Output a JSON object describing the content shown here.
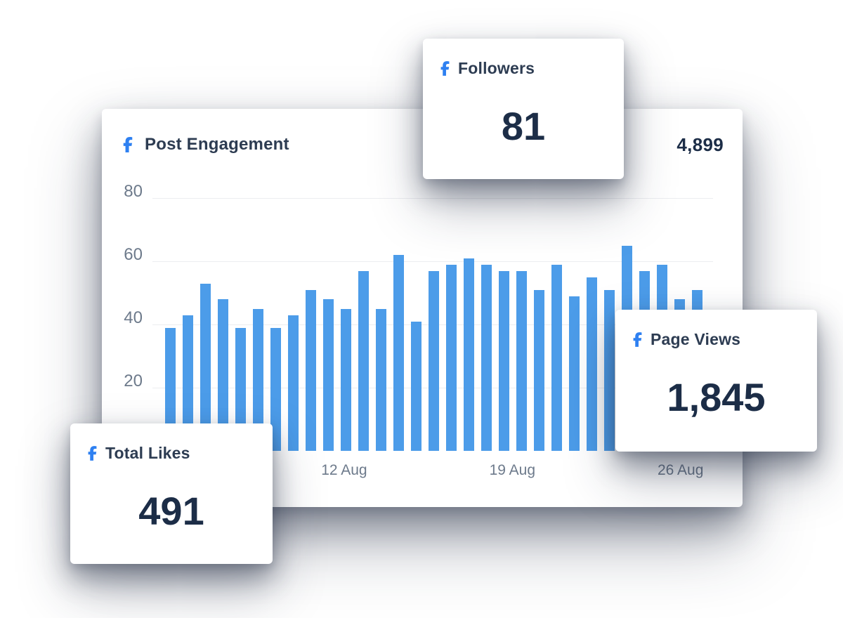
{
  "colors": {
    "facebook": "#2E80F1",
    "bar": "#4C9CE9",
    "heading": "#2D3C52",
    "value": "#1C2D47",
    "axis": "#6D7A8B",
    "grid": "#ECEDF0",
    "card_bg": "#FFFFFF"
  },
  "main_card": {
    "title": "Post Engagement",
    "total": "4,899",
    "icon": "facebook-icon"
  },
  "stat_cards": [
    {
      "label": "Followers",
      "value": "81",
      "icon": "facebook-icon"
    },
    {
      "label": "Page Views",
      "value": "1,845",
      "icon": "facebook-icon"
    },
    {
      "label": "Total Likes",
      "value": "491",
      "icon": "facebook-icon"
    }
  ],
  "chart_data": {
    "type": "bar",
    "title": "Post Engagement",
    "values": [
      39,
      43,
      53,
      48,
      39,
      45,
      39,
      43,
      51,
      48,
      45,
      57,
      45,
      62,
      41,
      57,
      59,
      61,
      59,
      57,
      57,
      51,
      59,
      49,
      55,
      51,
      65,
      57,
      59,
      48,
      51
    ],
    "ylim": [
      0,
      80
    ],
    "y_ticks": [
      20,
      40,
      60,
      80
    ],
    "x_tick_labels": [
      "12 Aug",
      "19 Aug",
      "26 Aug"
    ],
    "x_tick_positions_pct": [
      34.2,
      64.2,
      94.2
    ],
    "grid": "horizontal-only",
    "legend": "none",
    "bar_color": "#4C9CE9"
  }
}
